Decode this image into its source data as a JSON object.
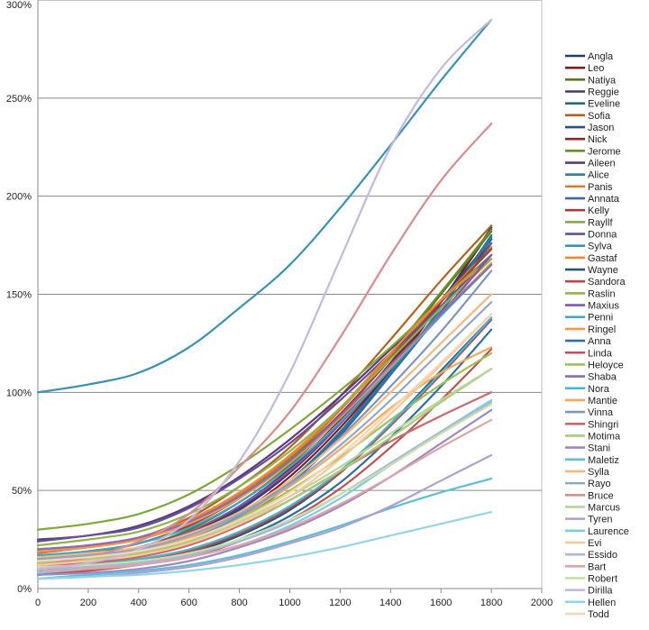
{
  "chart_data": {
    "type": "line",
    "title": "",
    "xlabel": "",
    "ylabel": "",
    "xlim": [
      0,
      2000
    ],
    "ylim": [
      0,
      300
    ],
    "x_ticks": [
      0,
      200,
      400,
      600,
      800,
      1000,
      1200,
      1400,
      1600,
      1800,
      2000
    ],
    "x_tick_labels": [
      "0",
      "200",
      "400",
      "600",
      "800",
      "1000",
      "1200",
      "1400",
      "1600",
      "1800",
      "2000"
    ],
    "y_ticks": [
      0,
      50,
      100,
      150,
      200,
      250,
      300
    ],
    "y_tick_labels": [
      "0%",
      "50%",
      "100%",
      "150%",
      "200%",
      "250%",
      "300%"
    ],
    "grid": "horizontal",
    "legend_position": "right",
    "x": [
      0,
      200,
      400,
      600,
      800,
      1000,
      1200,
      1400,
      1600,
      1800
    ],
    "series": [
      {
        "name": "Angla",
        "color": "#1f3f6e",
        "values": [
          10,
          13,
          17,
          24,
          36,
          54,
          80,
          111,
          146,
          184
        ]
      },
      {
        "name": "Leo",
        "color": "#7a1f1f",
        "values": [
          11,
          14,
          18,
          25,
          38,
          57,
          82,
          112,
          146,
          183
        ]
      },
      {
        "name": "Natiya",
        "color": "#5a7a22",
        "values": [
          14,
          17,
          21,
          30,
          44,
          63,
          88,
          118,
          150,
          182
        ]
      },
      {
        "name": "Reggie",
        "color": "#4a3570",
        "values": [
          12,
          15,
          19,
          27,
          40,
          59,
          84,
          114,
          146,
          178
        ]
      },
      {
        "name": "Eveline",
        "color": "#1f6e7a",
        "values": [
          9,
          12,
          16,
          23,
          35,
          53,
          78,
          109,
          143,
          180
        ]
      },
      {
        "name": "Sofia",
        "color": "#b5601f",
        "values": [
          20,
          22,
          26,
          36,
          52,
          72,
          98,
          127,
          157,
          185
        ]
      },
      {
        "name": "Jason",
        "color": "#244f8c",
        "values": [
          13,
          16,
          20,
          28,
          41,
          60,
          85,
          115,
          147,
          178
        ]
      },
      {
        "name": "Nick",
        "color": "#8c2424",
        "values": [
          12,
          15,
          20,
          28,
          42,
          61,
          86,
          115,
          146,
          176
        ]
      },
      {
        "name": "Jerome",
        "color": "#6b8c2e",
        "values": [
          15,
          18,
          23,
          32,
          47,
          66,
          91,
          120,
          151,
          183
        ]
      },
      {
        "name": "Aileen",
        "color": "#553d80",
        "values": [
          25,
          27,
          32,
          42,
          57,
          76,
          98,
          122,
          147,
          173
        ]
      },
      {
        "name": "Alice",
        "color": "#2d7f9c",
        "values": [
          11,
          14,
          18,
          25,
          37,
          55,
          80,
          110,
          143,
          179
        ]
      },
      {
        "name": "Panis",
        "color": "#d37a2e",
        "values": [
          18,
          21,
          25,
          34,
          48,
          67,
          91,
          119,
          147,
          174
        ]
      },
      {
        "name": "Annata",
        "color": "#3a67a8",
        "values": [
          10,
          13,
          17,
          24,
          36,
          54,
          79,
          109,
          141,
          176
        ]
      },
      {
        "name": "Kelly",
        "color": "#a83a3a",
        "values": [
          16,
          19,
          23,
          32,
          46,
          65,
          89,
          117,
          146,
          173
        ]
      },
      {
        "name": "Rayllf",
        "color": "#7fa83a",
        "values": [
          30,
          33,
          38,
          48,
          63,
          81,
          101,
          123,
          147,
          170
        ]
      },
      {
        "name": "Donna",
        "color": "#6a4f96",
        "values": [
          24,
          27,
          31,
          41,
          56,
          74,
          96,
          120,
          144,
          170
        ]
      },
      {
        "name": "Sylva",
        "color": "#3593b5",
        "values": [
          100,
          104,
          110,
          123,
          143,
          165,
          194,
          226,
          259,
          290
        ]
      },
      {
        "name": "Gastaf",
        "color": "#ee8a38",
        "values": [
          20,
          22,
          26,
          35,
          49,
          68,
          92,
          120,
          147,
          168
        ]
      },
      {
        "name": "Wayne",
        "color": "#1f5a78",
        "values": [
          8,
          10,
          13,
          18,
          27,
          40,
          59,
          84,
          111,
          138
        ]
      },
      {
        "name": "Sandora",
        "color": "#b84a4a",
        "values": [
          9,
          11,
          14,
          19,
          28,
          41,
          59,
          83,
          109,
          137
        ]
      },
      {
        "name": "Raslin",
        "color": "#8fb54a",
        "values": [
          22,
          25,
          29,
          38,
          52,
          70,
          92,
          117,
          143,
          168
        ]
      },
      {
        "name": "Maxius",
        "color": "#7a5ca8",
        "values": [
          14,
          17,
          21,
          29,
          42,
          60,
          84,
          112,
          140,
          170
        ]
      },
      {
        "name": "Penni",
        "color": "#3aa8c8",
        "values": [
          17,
          19,
          23,
          31,
          44,
          62,
          85,
          112,
          139,
          165
        ]
      },
      {
        "name": "Ringel",
        "color": "#f09a4a",
        "values": [
          19,
          21,
          25,
          33,
          46,
          64,
          87,
          113,
          140,
          166
        ]
      },
      {
        "name": "Anna",
        "color": "#2e6ea0",
        "values": [
          8,
          10,
          12,
          17,
          25,
          37,
          54,
          77,
          103,
          132
        ]
      },
      {
        "name": "Linda",
        "color": "#c25050",
        "values": [
          7,
          9,
          12,
          16,
          24,
          35,
          51,
          72,
          96,
          122
        ]
      },
      {
        "name": "Heloyce",
        "color": "#9cc25a",
        "values": [
          13,
          15,
          18,
          25,
          36,
          50,
          67,
          86,
          104,
          120
        ]
      },
      {
        "name": "Shaba",
        "color": "#8a6cb5",
        "values": [
          20,
          22,
          26,
          34,
          47,
          65,
          88,
          114,
          140,
          165
        ]
      },
      {
        "name": "Nora",
        "color": "#45b5d5",
        "values": [
          10,
          12,
          15,
          20,
          29,
          42,
          60,
          84,
          110,
          138
        ]
      },
      {
        "name": "Mantie",
        "color": "#f5a85a",
        "values": [
          14,
          16,
          19,
          26,
          37,
          52,
          71,
          92,
          110,
          123
        ]
      },
      {
        "name": "Vinna",
        "color": "#7d94c2",
        "values": [
          12,
          14,
          18,
          25,
          37,
          54,
          77,
          103,
          131,
          162
        ]
      },
      {
        "name": "Shingri",
        "color": "#c86a6a",
        "values": [
          11,
          13,
          16,
          22,
          32,
          45,
          60,
          75,
          88,
          100
        ]
      },
      {
        "name": "Motima",
        "color": "#a8cc7a",
        "values": [
          13,
          15,
          18,
          24,
          33,
          45,
          60,
          77,
          95,
          112
        ]
      },
      {
        "name": "Stani",
        "color": "#9e8ac2",
        "values": [
          7,
          8,
          10,
          14,
          21,
          30,
          42,
          57,
          74,
          91
        ]
      },
      {
        "name": "Maletiz",
        "color": "#5cbfd8",
        "values": [
          5,
          7,
          9,
          12,
          17,
          24,
          32,
          41,
          49,
          56
        ]
      },
      {
        "name": "Sylla",
        "color": "#f5b878",
        "values": [
          16,
          18,
          21,
          28,
          39,
          55,
          76,
          100,
          125,
          150
        ]
      },
      {
        "name": "Rayo",
        "color": "#8fa6cc",
        "values": [
          15,
          17,
          20,
          27,
          38,
          53,
          73,
          96,
          121,
          146
        ]
      },
      {
        "name": "Bruce",
        "color": "#d88c8c",
        "values": [
          12,
          16,
          24,
          38,
          62,
          90,
          128,
          170,
          208,
          237
        ]
      },
      {
        "name": "Marcus",
        "color": "#b8d498",
        "values": [
          14,
          16,
          19,
          25,
          34,
          47,
          62,
          79,
          96,
          112
        ]
      },
      {
        "name": "Tyren",
        "color": "#b0a0d0",
        "values": [
          5,
          6,
          8,
          11,
          16,
          23,
          31,
          42,
          55,
          68
        ]
      },
      {
        "name": "Laurence",
        "color": "#7ccce2",
        "values": [
          8,
          10,
          12,
          16,
          22,
          32,
          46,
          63,
          80,
          96
        ]
      },
      {
        "name": "Evi",
        "color": "#f8c898",
        "values": [
          12,
          14,
          17,
          23,
          33,
          47,
          66,
          89,
          114,
          140
        ]
      },
      {
        "name": "Essido",
        "color": "#a8b8dc",
        "values": [
          10,
          11,
          13,
          17,
          24,
          34,
          48,
          64,
          80,
          95
        ]
      },
      {
        "name": "Bart",
        "color": "#e0a4a4",
        "values": [
          9,
          10,
          12,
          16,
          22,
          31,
          43,
          57,
          72,
          86
        ]
      },
      {
        "name": "Robert",
        "color": "#c8e0a8",
        "values": [
          11,
          12,
          14,
          18,
          25,
          35,
          48,
          63,
          79,
          94
        ]
      },
      {
        "name": "Dirilla",
        "color": "#c4b8dc",
        "values": [
          10,
          13,
          20,
          35,
          65,
          110,
          168,
          225,
          265,
          290
        ]
      },
      {
        "name": "Hellen",
        "color": "#94d4ea",
        "values": [
          5,
          6,
          7,
          9,
          12,
          16,
          21,
          27,
          33,
          39
        ]
      },
      {
        "name": "Todd",
        "color": "#f8d4b0",
        "values": [
          14,
          16,
          19,
          25,
          35,
          49,
          68,
          91,
          115,
          140
        ]
      }
    ]
  }
}
